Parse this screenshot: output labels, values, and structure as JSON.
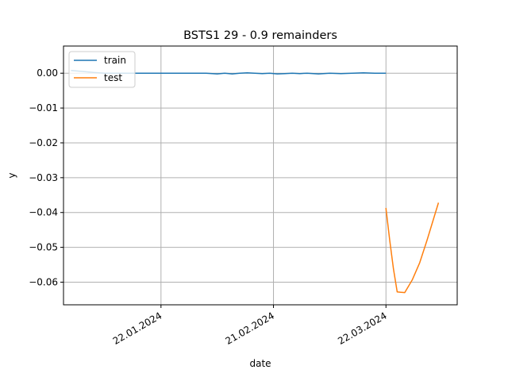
{
  "chart_data": {
    "type": "line",
    "title": "BSTS1 29 - 0.9 remainders",
    "xlabel": "date",
    "ylabel": "y",
    "x_ticks": [
      "2024-01-22",
      "2024-02-21",
      "2024-03-22"
    ],
    "x_tick_labels": [
      "22.01.2024",
      "21.02.2024",
      "22.03.2024"
    ],
    "y_ticks": [
      0.0,
      -0.01,
      -0.02,
      -0.03,
      -0.04,
      -0.05,
      -0.06
    ],
    "y_tick_labels": [
      "0.00",
      "−0.01",
      "−0.02",
      "−0.03",
      "−0.04",
      "−0.05",
      "−0.06"
    ],
    "xlim": [
      "2023-12-27",
      "2024-04-10"
    ],
    "ylim": [
      -0.0665,
      0.0078
    ],
    "grid": true,
    "legend_position": "top-left",
    "series": [
      {
        "name": "train",
        "color": "#1f77b4",
        "x": [
          "2023-12-29",
          "2024-01-01",
          "2024-01-04",
          "2024-01-07",
          "2024-01-10",
          "2024-01-13",
          "2024-01-16",
          "2024-01-19",
          "2024-01-22",
          "2024-01-25",
          "2024-01-28",
          "2024-01-31",
          "2024-02-03",
          "2024-02-06",
          "2024-02-08",
          "2024-02-10",
          "2024-02-12",
          "2024-02-14",
          "2024-02-16",
          "2024-02-18",
          "2024-02-20",
          "2024-02-22",
          "2024-02-24",
          "2024-02-26",
          "2024-02-28",
          "2024-03-01",
          "2024-03-04",
          "2024-03-07",
          "2024-03-10",
          "2024-03-13",
          "2024-03-16",
          "2024-03-19",
          "2024-03-22"
        ],
        "values": [
          0.0008,
          0.0005,
          0.0002,
          0.0,
          0.0,
          0.0,
          0.0,
          0.0,
          0.0,
          0.0,
          0.0,
          0.0,
          0.0,
          -0.0002,
          0.0,
          -0.0002,
          0.0,
          0.0001,
          0.0,
          -0.0001,
          0.0,
          -0.0002,
          -0.0001,
          0.0,
          -0.0001,
          0.0,
          -0.0002,
          0.0,
          -0.0001,
          0.0,
          0.0001,
          0.0,
          0.0
        ]
      },
      {
        "name": "test",
        "color": "#ff7f0e",
        "x": [
          "2024-03-22",
          "2024-03-23",
          "2024-03-24",
          "2024-03-25",
          "2024-03-26",
          "2024-03-27",
          "2024-03-29",
          "2024-03-31",
          "2024-04-02",
          "2024-04-05"
        ],
        "values": [
          -0.0387,
          -0.048,
          -0.0562,
          -0.0628,
          -0.0629,
          -0.063,
          -0.0594,
          -0.0544,
          -0.0478,
          -0.0372
        ]
      }
    ]
  }
}
